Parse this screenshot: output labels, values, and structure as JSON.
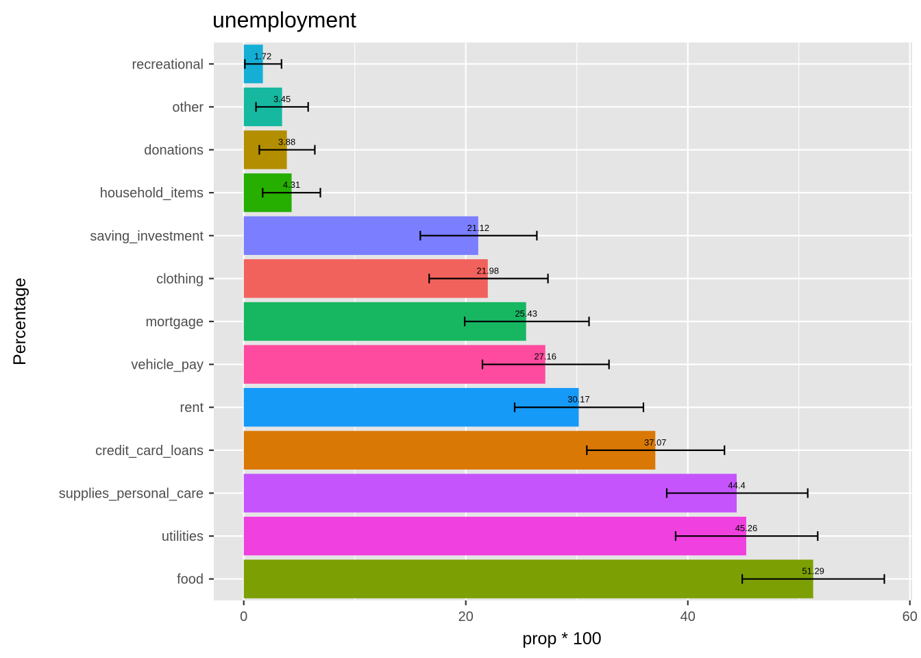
{
  "chart_data": {
    "type": "bar",
    "orientation": "horizontal",
    "title": "unemployment",
    "xlabel": "prop * 100",
    "ylabel": "Percentage",
    "xlim": [
      -2.7,
      60.2
    ],
    "x_ticks": [
      0,
      20,
      40,
      60
    ],
    "grid": true,
    "legend": "none",
    "categories": [
      "recreational",
      "other",
      "donations",
      "household_items",
      "saving_investment",
      "clothing",
      "mortgage",
      "vehicle_pay",
      "rent",
      "credit_card_loans",
      "supplies_personal_care",
      "utilities",
      "food"
    ],
    "values": [
      1.72,
      3.45,
      3.88,
      4.31,
      21.12,
      21.98,
      25.43,
      27.16,
      30.17,
      37.07,
      44.4,
      45.26,
      51.29
    ],
    "labels": [
      "1.72",
      "3.45",
      "3.88",
      "4.31",
      "21.12",
      "21.98",
      "25.43",
      "27.16",
      "30.17",
      "37.07",
      "44.4",
      "45.26",
      "51.29"
    ],
    "error_low": [
      0.1,
      1.1,
      1.4,
      1.7,
      15.9,
      16.7,
      19.9,
      21.5,
      24.4,
      30.9,
      38.1,
      38.9,
      44.9
    ],
    "error_high": [
      3.4,
      5.8,
      6.4,
      6.9,
      26.4,
      27.4,
      31.1,
      32.9,
      36.0,
      43.3,
      50.8,
      51.7,
      57.7
    ],
    "colors": [
      "#15AFD6",
      "#16B8A0",
      "#B38E00",
      "#26AE00",
      "#7A7EFF",
      "#F2625D",
      "#17B660",
      "#FF4B9F",
      "#159AF8",
      "#D97805",
      "#C654FD",
      "#F040DF",
      "#7CA004"
    ]
  }
}
